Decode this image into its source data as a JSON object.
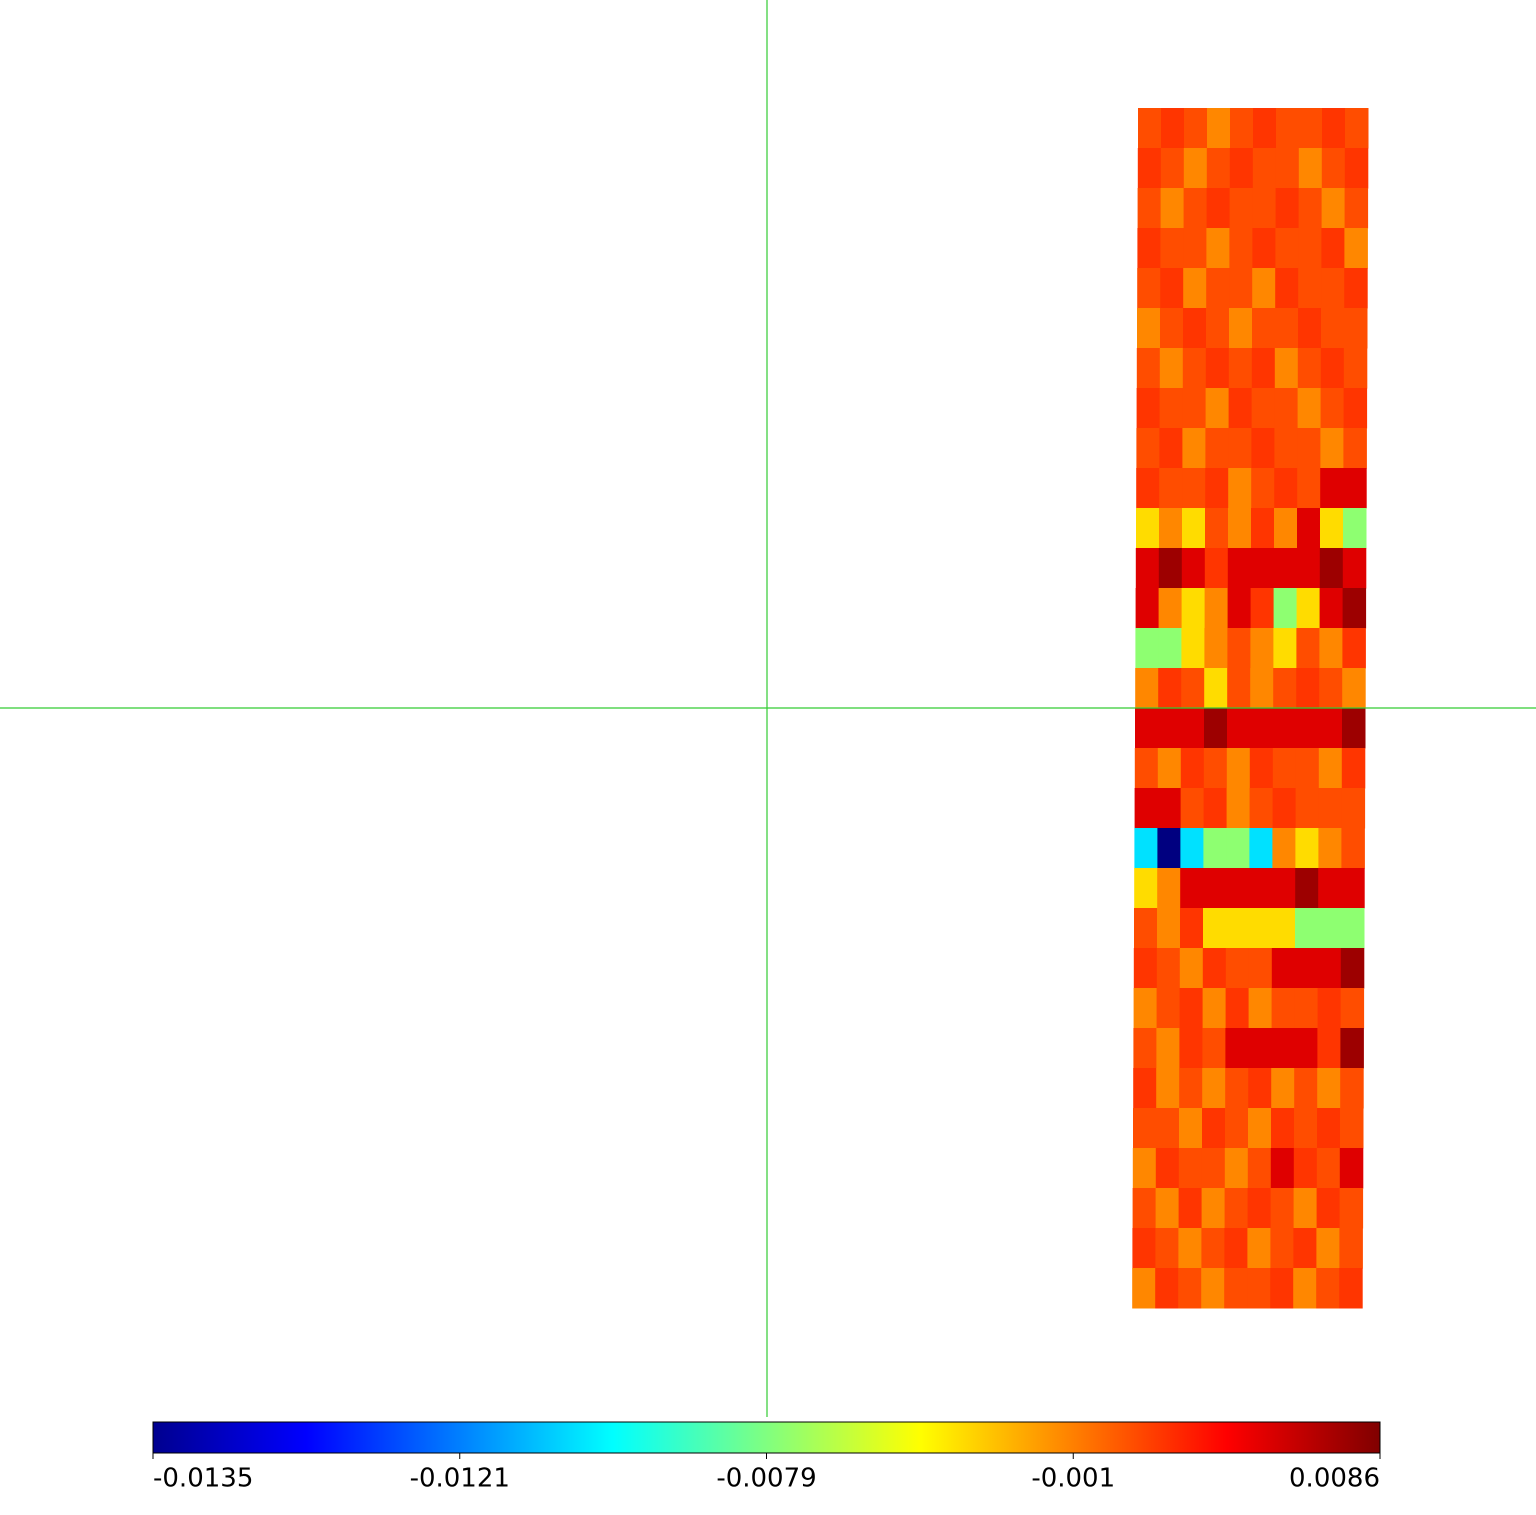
{
  "chart_data": {
    "type": "heatmap",
    "values": [
      [
        0.0009,
        0.0018,
        0.0009,
        -0.0012,
        0.0009,
        0.0018,
        0.0009,
        0.0009,
        0.0018,
        0.0009
      ],
      [
        0.0018,
        0.0009,
        -0.0012,
        0.0009,
        0.0018,
        0.0009,
        0.0009,
        -0.0012,
        0.0009,
        0.0018
      ],
      [
        0.0009,
        -0.0012,
        0.0009,
        0.0018,
        0.0009,
        0.0009,
        0.0018,
        0.0009,
        -0.0012,
        0.0009
      ],
      [
        0.0018,
        0.0009,
        0.0009,
        -0.0012,
        0.0009,
        0.0018,
        0.0009,
        0.0009,
        0.0018,
        -0.0012
      ],
      [
        0.0009,
        0.0018,
        -0.0012,
        0.0009,
        0.0009,
        -0.0012,
        0.0018,
        0.0009,
        0.0009,
        0.0018
      ],
      [
        -0.0012,
        0.0009,
        0.0018,
        0.0009,
        -0.0012,
        0.0009,
        0.0009,
        0.0018,
        0.0009,
        0.0009
      ],
      [
        0.0009,
        -0.0012,
        0.0009,
        0.0018,
        0.0009,
        0.0018,
        -0.0012,
        0.0009,
        0.0018,
        0.0009
      ],
      [
        0.0018,
        0.0009,
        0.0009,
        -0.0012,
        0.0018,
        0.0009,
        0.0009,
        -0.0012,
        0.0009,
        0.0018
      ],
      [
        0.0009,
        0.0018,
        -0.0012,
        0.0009,
        0.0009,
        0.0018,
        0.0009,
        0.0009,
        -0.0012,
        0.0009
      ],
      [
        0.0018,
        0.0009,
        0.0009,
        0.0018,
        -0.0012,
        0.0009,
        0.0018,
        0.0009,
        0.005,
        0.005
      ],
      [
        -0.0035,
        -0.0012,
        -0.0035,
        0.0009,
        -0.0012,
        0.0018,
        -0.0012,
        0.005,
        -0.0035,
        -0.0075
      ],
      [
        0.005,
        0.0075,
        0.005,
        0.0018,
        0.005,
        0.005,
        0.005,
        0.005,
        0.0075,
        0.005
      ],
      [
        0.005,
        -0.0012,
        -0.0035,
        -0.0012,
        0.005,
        0.0018,
        -0.0075,
        -0.0035,
        0.005,
        0.0075
      ],
      [
        -0.0075,
        -0.0075,
        -0.0035,
        -0.0012,
        0.0009,
        -0.0012,
        -0.0035,
        0.0009,
        -0.0012,
        0.0018
      ],
      [
        -0.0012,
        0.0018,
        0.0009,
        -0.0035,
        0.0009,
        -0.0012,
        0.0009,
        0.0018,
        0.0009,
        -0.0012
      ],
      [
        0.005,
        0.005,
        0.005,
        0.0075,
        0.005,
        0.005,
        0.005,
        0.005,
        0.005,
        0.0075
      ],
      [
        0.0009,
        -0.0012,
        0.0018,
        0.0009,
        -0.0012,
        0.0018,
        0.0009,
        0.0009,
        -0.0012,
        0.0018
      ],
      [
        0.005,
        0.005,
        0.0009,
        0.0018,
        -0.0012,
        0.0009,
        0.0018,
        0.0009,
        0.0009,
        0.0009
      ],
      [
        -0.0105,
        -0.0135,
        -0.0105,
        -0.0075,
        -0.0075,
        -0.0105,
        -0.0012,
        -0.0035,
        -0.0012,
        0.0009
      ],
      [
        -0.0035,
        -0.0012,
        0.005,
        0.005,
        0.005,
        0.005,
        0.005,
        0.0075,
        0.005,
        0.005
      ],
      [
        0.0009,
        -0.0012,
        0.0018,
        -0.0035,
        -0.0035,
        -0.0035,
        -0.0035,
        -0.0075,
        -0.0075,
        -0.0075
      ],
      [
        0.0018,
        0.0009,
        -0.0012,
        0.0018,
        0.0009,
        0.0009,
        0.005,
        0.005,
        0.005,
        0.0075
      ],
      [
        -0.0012,
        0.0009,
        0.0018,
        -0.0012,
        0.0018,
        -0.0012,
        0.0009,
        0.0009,
        0.0018,
        0.0009
      ],
      [
        0.0009,
        -0.0012,
        0.0018,
        0.0009,
        0.005,
        0.005,
        0.005,
        0.005,
        0.0018,
        0.0075
      ],
      [
        0.0018,
        -0.0012,
        0.0009,
        -0.0012,
        0.0009,
        0.0018,
        -0.0012,
        0.0009,
        -0.0012,
        0.0009
      ],
      [
        0.0009,
        0.0009,
        -0.0012,
        0.0018,
        0.0009,
        -0.0012,
        0.0018,
        0.0009,
        0.0018,
        0.0009
      ],
      [
        -0.0012,
        0.0018,
        0.0009,
        0.0009,
        -0.0012,
        0.0009,
        0.005,
        0.0018,
        0.0009,
        0.005
      ],
      [
        0.0009,
        -0.0012,
        0.0018,
        -0.0012,
        0.0009,
        0.0018,
        0.0009,
        -0.0012,
        0.0018,
        0.0009
      ],
      [
        0.0018,
        0.0009,
        -0.0012,
        0.0009,
        0.0018,
        -0.0012,
        0.0009,
        0.0018,
        -0.0012,
        0.0009
      ],
      [
        -0.0012,
        0.0018,
        0.0009,
        -0.0012,
        0.0009,
        0.0009,
        0.0018,
        -0.0012,
        0.0009,
        0.0018
      ]
    ],
    "colorbar_ticks": [
      -0.0135,
      -0.0121,
      -0.0079,
      -0.001,
      {
        "value": 0.0086,
        "label": "0.0086"
      }
    ]
  }
}
